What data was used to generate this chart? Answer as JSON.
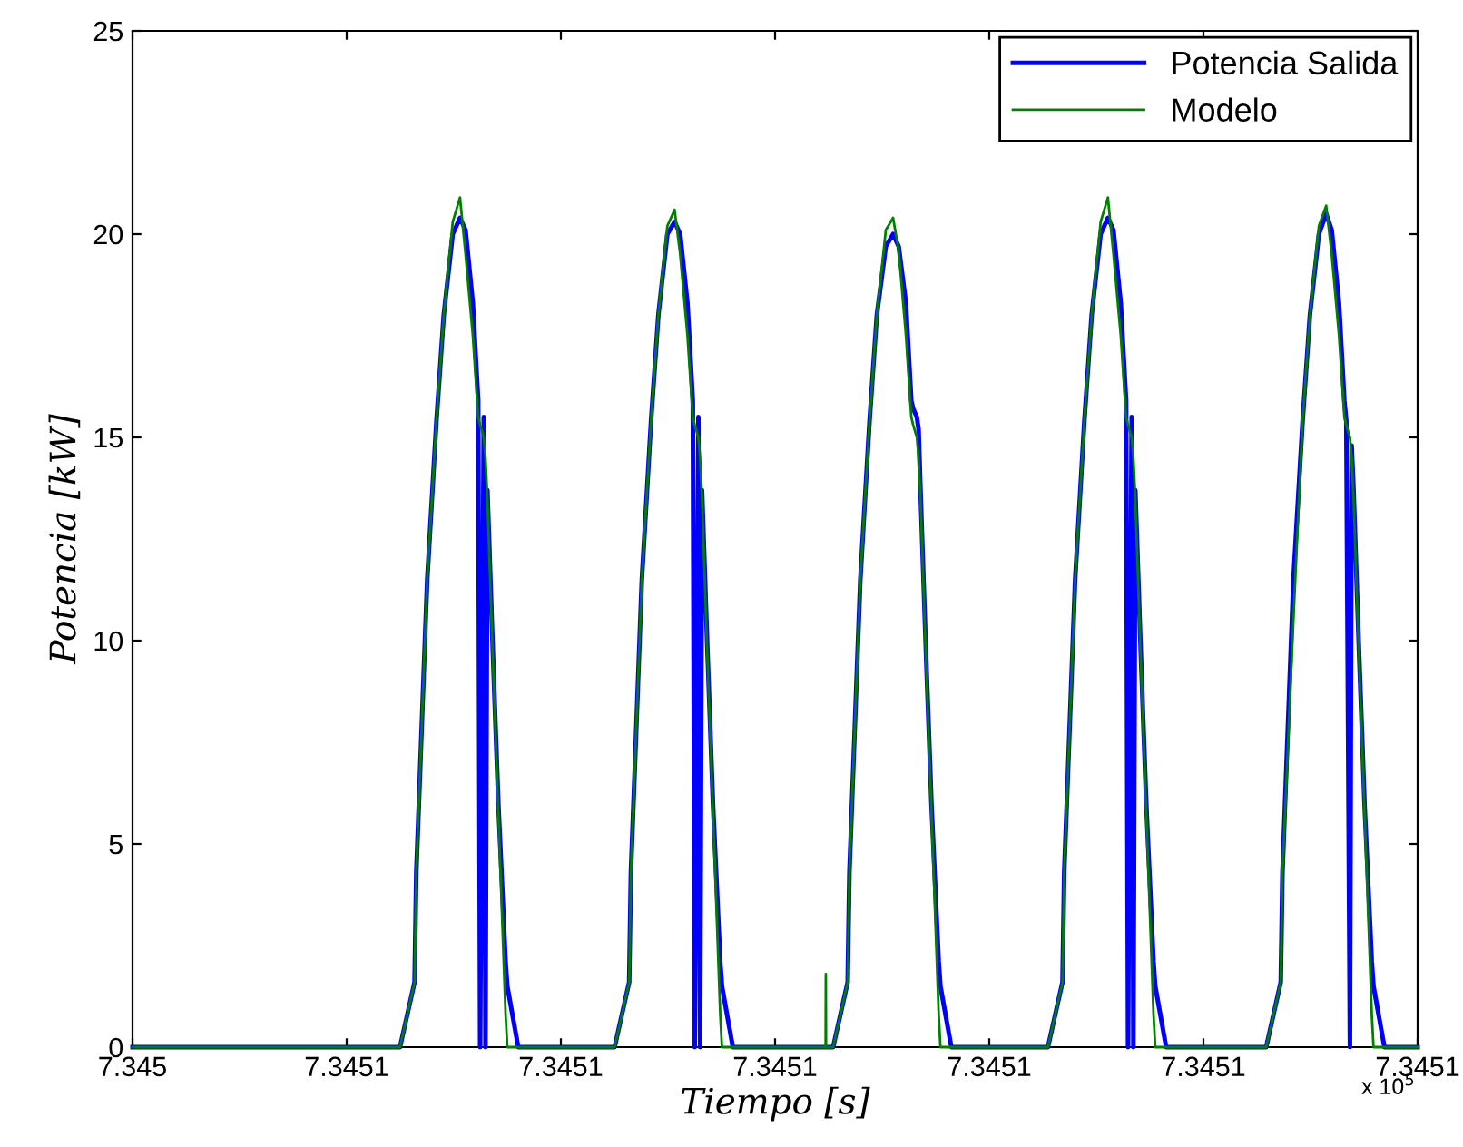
{
  "chart_data": {
    "type": "line",
    "xlabel": "Tiempo [s]",
    "ylabel": "Potencia [kW]",
    "x": [
      7.34504,
      7.34505249,
      7.34505317,
      7.34505325,
      7.34505376,
      7.34505419,
      7.34505453,
      7.34505495,
      7.34505529,
      7.34505555,
      7.34505589,
      7.34505614,
      7.34505623,
      7.3450564,
      7.34505648,
      7.34505657,
      7.34505682,
      7.34505708,
      7.34505742,
      7.3450575,
      7.34505801,
      7.34506251,
      7.34506319,
      7.34506327,
      7.34506378,
      7.34506421,
      7.34506455,
      7.34506497,
      7.34506531,
      7.34506557,
      7.34506591,
      7.34506616,
      7.34506625,
      7.34506642,
      7.3450665,
      7.34506659,
      7.34506684,
      7.3450671,
      7.34506744,
      7.34506752,
      7.34506803,
      7.34507236,
      7.34507237,
      7.34507238,
      7.34507271,
      7.34507339,
      7.34507347,
      7.34507398,
      7.34507441,
      7.34507475,
      7.34507517,
      7.34507551,
      7.34507577,
      7.34507611,
      7.34507636,
      7.34507645,
      7.34507662,
      7.3450767,
      7.34507679,
      7.34507704,
      7.3450773,
      7.34507764,
      7.34507772,
      7.34507823,
      7.34508274,
      7.34508342,
      7.3450835,
      7.34508401,
      7.34508444,
      7.34508478,
      7.3450852,
      7.34508554,
      7.3450858,
      7.34508614,
      7.34508639,
      7.34508648,
      7.34508665,
      7.34508673,
      7.34508682,
      7.34508707,
      7.34508733,
      7.34508767,
      7.34508775,
      7.34508826,
      7.34509293,
      7.34509361,
      7.34509369,
      7.3450942,
      7.34509463,
      7.34509497,
      7.34509539,
      7.34509573,
      7.34509599,
      7.34509633,
      7.34509658,
      7.34509667,
      7.34509684,
      7.34509692,
      7.34509701,
      7.34509726,
      7.34509752,
      7.34509786,
      7.34509794,
      7.34509845,
      7.3451
    ],
    "series": [
      {
        "name": "Potencia Salida",
        "color": "#0000ff",
        "values": [
          0,
          0,
          1.6,
          4.3,
          11.5,
          15.4,
          18,
          20.0,
          20.4,
          20.1,
          18.3,
          15.9,
          0,
          15.5,
          0,
          13.7,
          9.8,
          6.0,
          2.1,
          1.5,
          0,
          0,
          1.6,
          4.3,
          11.5,
          15.4,
          18,
          20.0,
          20.3,
          20.0,
          18.3,
          15.9,
          0,
          15.5,
          0,
          13.7,
          9.8,
          6.0,
          2.1,
          1.5,
          0,
          0,
          0,
          0,
          0,
          1.6,
          4.3,
          11.5,
          15.4,
          18,
          19.7,
          20.0,
          19.7,
          18.3,
          15.9,
          15.7,
          15.5,
          15.2,
          13.7,
          9.8,
          6.0,
          2.1,
          1.5,
          0,
          0,
          1.6,
          4.3,
          11.5,
          15.4,
          18,
          20.0,
          20.4,
          20.1,
          18.3,
          15.9,
          0,
          15.5,
          0,
          13.7,
          9.8,
          6.0,
          2.1,
          1.5,
          0,
          0,
          1.6,
          4.3,
          11.5,
          15.4,
          18,
          20.0,
          20.5,
          20.1,
          18.3,
          15.9,
          15.4,
          0,
          14.8,
          13.7,
          9.8,
          6.0,
          2.1,
          1.5,
          0,
          0
        ]
      },
      {
        "name": "Modelo",
        "color": "#008000",
        "values": [
          0,
          0,
          1.6,
          4.3,
          11.5,
          15.4,
          18,
          20.3,
          20.9,
          19.5,
          17.5,
          15.5,
          15.3,
          15.0,
          14.5,
          13.5,
          9.6,
          5.8,
          0.8,
          0,
          0,
          0,
          1.6,
          4.3,
          11.5,
          15.4,
          18,
          20.2,
          20.6,
          19.5,
          17.5,
          15.5,
          15.3,
          15.0,
          14.5,
          13.5,
          9.6,
          5.8,
          0.8,
          0,
          0,
          0,
          1.8,
          0,
          0,
          1.6,
          4.3,
          11.5,
          15.4,
          18,
          20.1,
          20.4,
          19.6,
          17.5,
          15.5,
          15.3,
          15.0,
          14.5,
          13.5,
          9.6,
          5.8,
          0.8,
          0,
          0,
          0,
          1.6,
          4.3,
          11.5,
          15.4,
          18,
          20.3,
          20.9,
          19.5,
          17.5,
          15.5,
          15.3,
          15.0,
          14.5,
          13.5,
          9.6,
          5.8,
          0.8,
          0,
          0,
          0,
          1.6,
          4.3,
          10.5,
          15.4,
          18,
          20.2,
          20.7,
          19.5,
          17.5,
          15.5,
          15.3,
          15.0,
          14.5,
          13.5,
          9.6,
          5.8,
          0.8,
          0,
          0,
          0
        ]
      }
    ],
    "xlim": [
      7.34504,
      7.3451
    ],
    "xticks": [
      {
        "value": 7.34504,
        "label": "7.345"
      },
      {
        "value": 7.34505,
        "label": "7.3451"
      },
      {
        "value": 7.34506,
        "label": "7.3451"
      },
      {
        "value": 7.34507,
        "label": "7.3451"
      },
      {
        "value": 7.34508,
        "label": "7.3451"
      },
      {
        "value": 7.34509,
        "label": "7.3451"
      },
      {
        "value": 7.3451,
        "label": "7.3451"
      }
    ],
    "ylim": [
      0,
      25
    ],
    "yticks": [
      0,
      5,
      10,
      15,
      20,
      25
    ],
    "grid": false,
    "legend": "top right",
    "annotations": [
      "x 10$^{5}$"
    ]
  }
}
